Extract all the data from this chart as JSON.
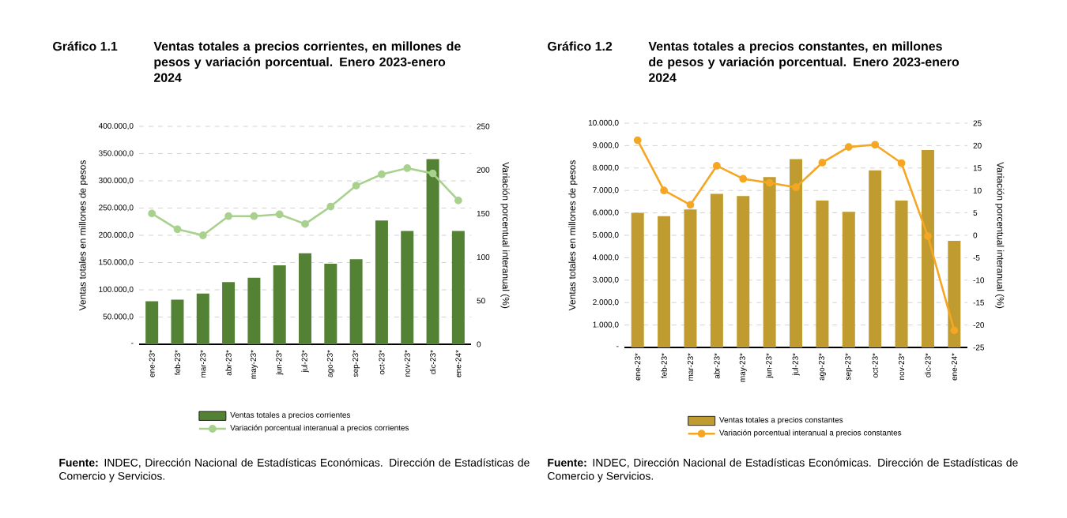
{
  "chart_data": [
    {
      "type": "bar",
      "title": "Gráfico 1.1",
      "subtitle": "Ventas totales a precios corrientes, en millones de pesos y variación porcentual. Enero 2023-enero 2024",
      "ylabel": "Ventas totales en millones de pesos",
      "y2label": "Variación porcentual interanual (%)",
      "categories": [
        "ene-23*",
        "feb-23*",
        "mar-23*",
        "abr-23*",
        "may-23*",
        "jun-23*",
        "jul-23*",
        "ago-23*",
        "sep-23*",
        "oct-23*",
        "nov-23*",
        "dic-23*",
        "ene-24*"
      ],
      "series": [
        {
          "name": "Ventas totales a precios corrientes",
          "color": "#548235",
          "values": [
            79000,
            82000,
            93000,
            114000,
            122000,
            145000,
            167000,
            148000,
            156000,
            227000,
            208000,
            340000,
            208000
          ]
        },
        {
          "name": "Variación porcentual interanual a precios corrientes",
          "type": "line",
          "axis": "y2",
          "color": "#a9d18e",
          "values": [
            150,
            132,
            125,
            147,
            147,
            149,
            138,
            158,
            182,
            195,
            202,
            196,
            165
          ]
        }
      ],
      "ylim": [
        0,
        400000
      ],
      "yticks": [
        {
          "value": 0,
          "label": "-"
        },
        {
          "value": 50000,
          "label": "50.000,0"
        },
        {
          "value": 100000,
          "label": "100.000,0"
        },
        {
          "value": 150000,
          "label": "150.000,0"
        },
        {
          "value": 200000,
          "label": "200.000,0"
        },
        {
          "value": 250000,
          "label": "250.000,0"
        },
        {
          "value": 300000,
          "label": "300.000,0"
        },
        {
          "value": 350000,
          "label": "350.000,0"
        },
        {
          "value": 400000,
          "label": "400.000,0"
        }
      ],
      "y2lim": [
        0,
        250
      ],
      "y2ticks": [
        0,
        50,
        100,
        150,
        200,
        250
      ],
      "grid": "y",
      "legend": "bottom",
      "marker": "circle",
      "annotations": [
        "**Fuente:** INDEC, Dirección Nacional de Estadísticas Económicas. Dirección de Estadísticas de Comercio y Servicios."
      ]
    },
    {
      "type": "bar",
      "title": "Gráfico 1.2",
      "subtitle": "Ventas totales a precios constantes, en millones de pesos y variación porcentual. Enero 2023-enero 2024",
      "ylabel": "Ventas totales en millones de pesos",
      "y2label": "Variación porcentual interanual (%)",
      "categories": [
        "ene-23*",
        "feb-23*",
        "mar-23*",
        "abr-23*",
        "may-23*",
        "jun-23*",
        "jul-23*",
        "ago-23*",
        "sep-23*",
        "oct-23*",
        "nov-23*",
        "dic-23*",
        "ene-24*"
      ],
      "series": [
        {
          "name": "Ventas totales a precios constantes",
          "color": "#bf9b30",
          "values": [
            6000,
            5850,
            6150,
            6850,
            6750,
            7600,
            8400,
            6550,
            6050,
            7900,
            6550,
            8800,
            4750
          ]
        },
        {
          "name": "Variación porcentual interanual a precios constantes",
          "type": "line",
          "axis": "y2",
          "color": "#f5a623",
          "values": [
            21.2,
            10,
            6.8,
            15.5,
            12.6,
            11.7,
            10.7,
            16.2,
            19.7,
            20.2,
            16.1,
            -0.2,
            -21.2
          ]
        }
      ],
      "ylim": [
        0,
        10000
      ],
      "yticks": [
        {
          "value": 0,
          "label": "-"
        },
        {
          "value": 1000,
          "label": "1.000,0"
        },
        {
          "value": 2000,
          "label": "2.000,0"
        },
        {
          "value": 3000,
          "label": "3.000,0"
        },
        {
          "value": 4000,
          "label": "4.000,0"
        },
        {
          "value": 5000,
          "label": "5.000,0"
        },
        {
          "value": 6000,
          "label": "6.000,0"
        },
        {
          "value": 7000,
          "label": "7.000,0"
        },
        {
          "value": 8000,
          "label": "8.000,0"
        },
        {
          "value": 9000,
          "label": "9.000,0"
        },
        {
          "value": 10000,
          "label": "10.000,0"
        }
      ],
      "y2lim": [
        -25,
        25
      ],
      "y2ticks": [
        -25,
        -20,
        -15,
        -10,
        -5,
        0,
        5,
        10,
        15,
        20,
        25
      ],
      "grid": "y",
      "legend": "bottom",
      "marker": "circle",
      "annotations": [
        "**Fuente:** INDEC, Dirección Nacional de Estadísticas Económicas. Dirección de Estadísticas de Comercio y Servicios."
      ]
    }
  ]
}
